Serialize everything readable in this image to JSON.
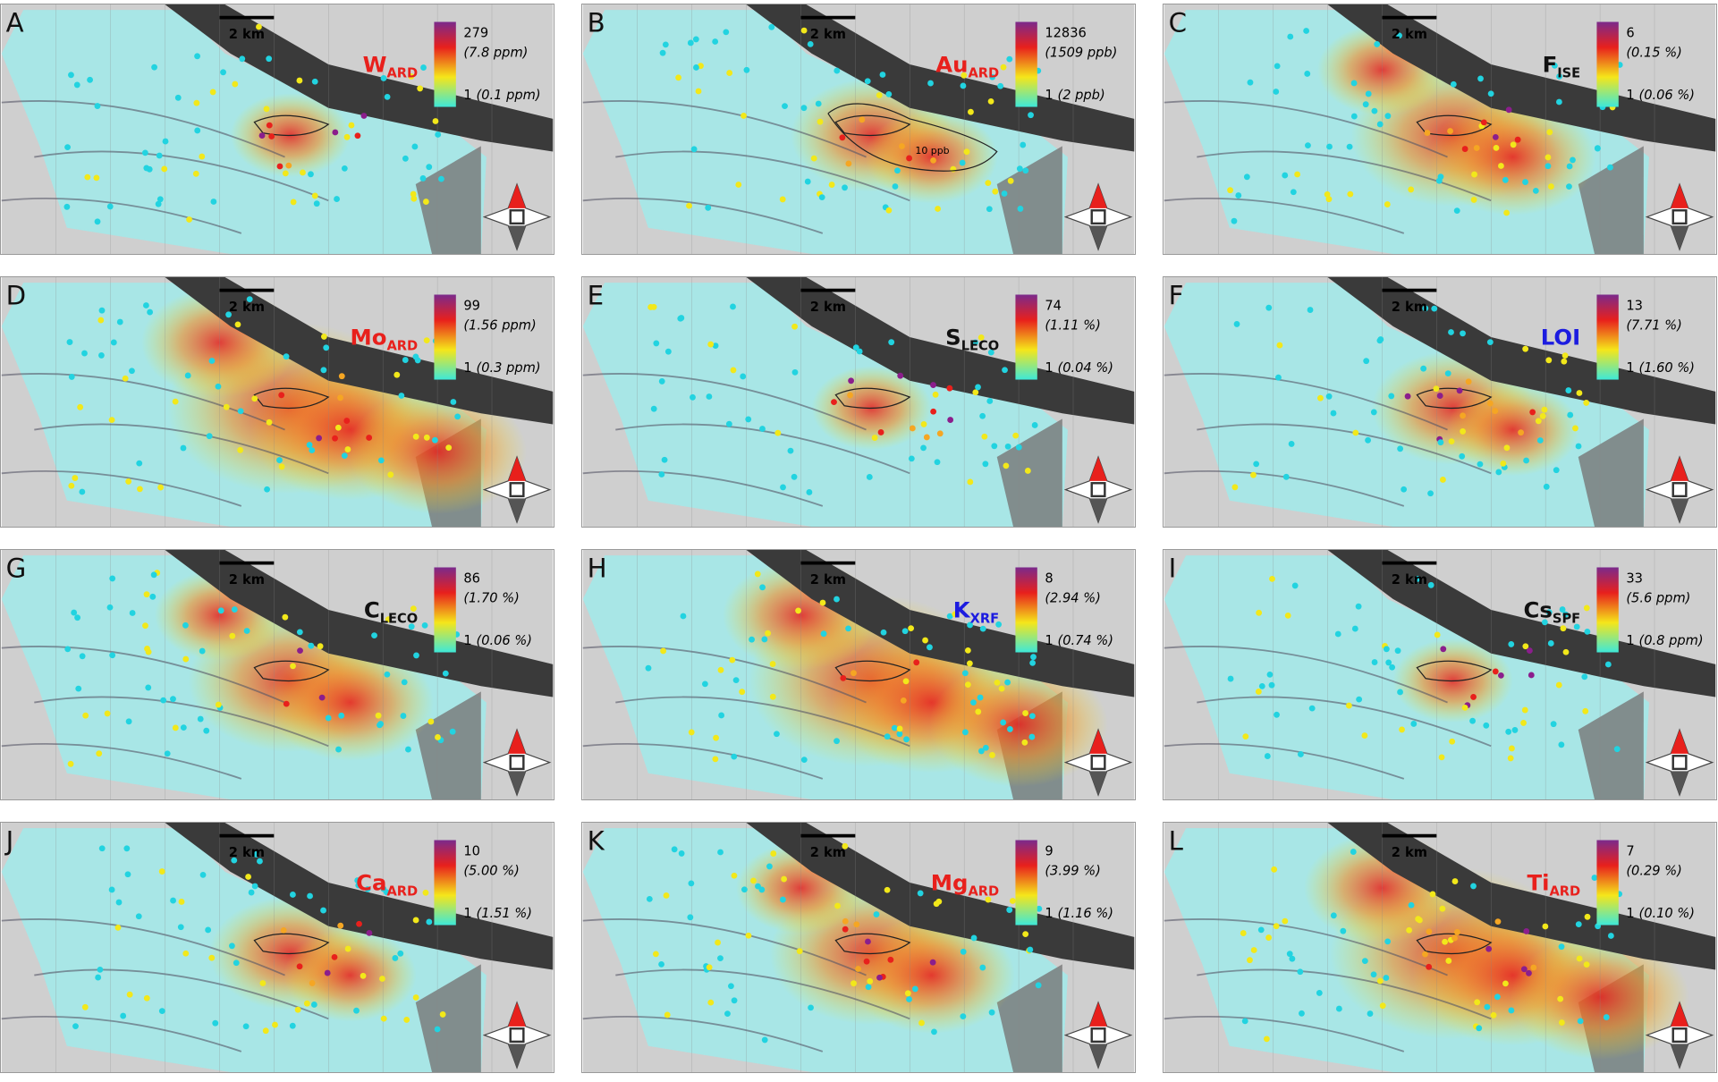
{
  "panels": [
    {
      "letter": "A",
      "element": "W",
      "subscript": "ARD",
      "max": 279,
      "max_note": "(7.8 ppm)",
      "min": 1,
      "min_note": "(0.1 ppm)",
      "label_color": "#e8201c"
    },
    {
      "letter": "B",
      "element": "Au",
      "subscript": "ARD",
      "max": 12836,
      "max_note": "(1509 ppb)",
      "min": 1,
      "min_note": "(2 ppb)",
      "label_color": "#e8201c",
      "contour_label": "10 ppb"
    },
    {
      "letter": "C",
      "element": "F",
      "subscript": "ISE",
      "max": 6,
      "max_note": "(0.15 %)",
      "min": 1,
      "min_note": "(0.06 %)",
      "label_color": "#111111"
    },
    {
      "letter": "D",
      "element": "Mo",
      "subscript": "ARD",
      "max": 99,
      "max_note": "(1.56 ppm)",
      "min": 1,
      "min_note": "(0.3 ppm)",
      "label_color": "#e8201c"
    },
    {
      "letter": "E",
      "element": "S",
      "subscript": "LECO",
      "max": 74,
      "max_note": "(1.11 %)",
      "min": 1,
      "min_note": "(0.04 %)",
      "label_color": "#111111"
    },
    {
      "letter": "F",
      "element": "LOI",
      "max": 13,
      "max_note": "(7.71 %)",
      "min": 1,
      "min_note": "(1.60 %)",
      "label_color": "#1c1ce0"
    },
    {
      "letter": "G",
      "element": "C",
      "subscript": "LECO",
      "max": 86,
      "max_note": "(1.70 %)",
      "min": 1,
      "min_note": "(0.06 %)",
      "label_color": "#111111"
    },
    {
      "letter": "H",
      "element": "K",
      "subscript": "XRF",
      "max": 8,
      "max_note": "(2.94 %)",
      "min": 1,
      "min_note": "(0.74 %)",
      "label_color": "#1c1ce0"
    },
    {
      "letter": "I",
      "element": "Cs",
      "subscript": "SPF",
      "max": 33,
      "max_note": "(5.6 ppm)",
      "min": 1,
      "min_note": "(0.8 ppm)",
      "label_color": "#111111"
    },
    {
      "letter": "J",
      "element": "Ca",
      "subscript": "ARD",
      "max": 10,
      "max_note": "(5.00 %)",
      "min": 1,
      "min_note": "(1.51 %)",
      "label_color": "#e8201c"
    },
    {
      "letter": "K",
      "element": "Mg",
      "subscript": "ARD",
      "max": 9,
      "max_note": "(3.99 %)",
      "min": 1,
      "min_note": "(1.16 %)",
      "label_color": "#e8201c"
    },
    {
      "letter": "L",
      "element": "Ti",
      "subscript": "ARD",
      "max": 7,
      "max_note": "(0.29 %)",
      "min": 1,
      "min_note": "(0.10 %)",
      "label_color": "#e8201c"
    }
  ],
  "scale_bar": "2 km"
}
